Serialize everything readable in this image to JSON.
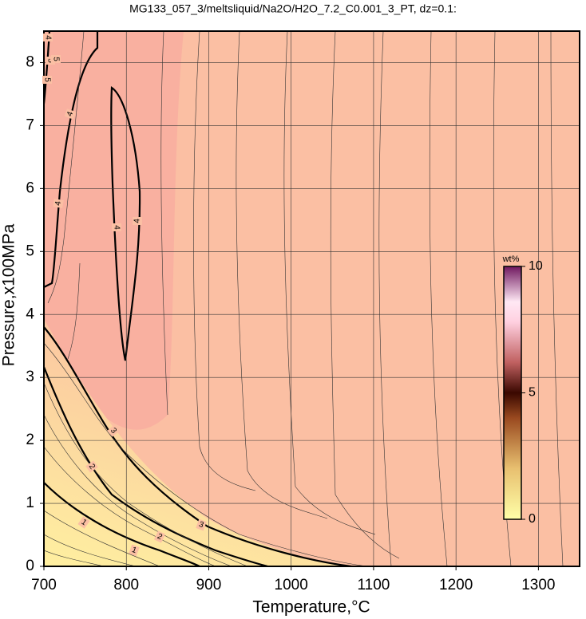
{
  "chart_data": {
    "type": "contour",
    "title": "MG133_057_3/meltsliquid/Na2O/H2O_7.2_C0.001_3_PT, dz=0.1:",
    "x_label": "Temperature,°C",
    "y_label": "Pressure,x100MPa",
    "xlim": [
      700,
      1350
    ],
    "ylim": [
      0,
      8.5
    ],
    "xticks": [
      700,
      800,
      900,
      1000,
      1100,
      1200,
      1300
    ],
    "yticks": [
      0,
      1,
      2,
      3,
      4,
      5,
      6,
      7,
      8
    ],
    "grid": true,
    "contour_labels": [
      5,
      5,
      5,
      4,
      4,
      4,
      4,
      4,
      3,
      3,
      2,
      2,
      1,
      1
    ],
    "colorbar": {
      "label": "wt%",
      "lim": [
        0,
        10
      ],
      "ticks": [
        0,
        5,
        10
      ]
    }
  }
}
